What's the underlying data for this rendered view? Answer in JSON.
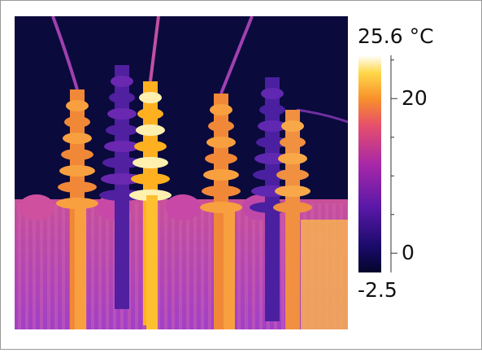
{
  "colorbar": {
    "max": {
      "value": 25.6,
      "label": "25.6 °C"
    },
    "min": -2.5,
    "ticks": [
      0,
      20
    ],
    "minor_ticks": [
      5,
      10,
      15,
      25
    ]
  }
}
